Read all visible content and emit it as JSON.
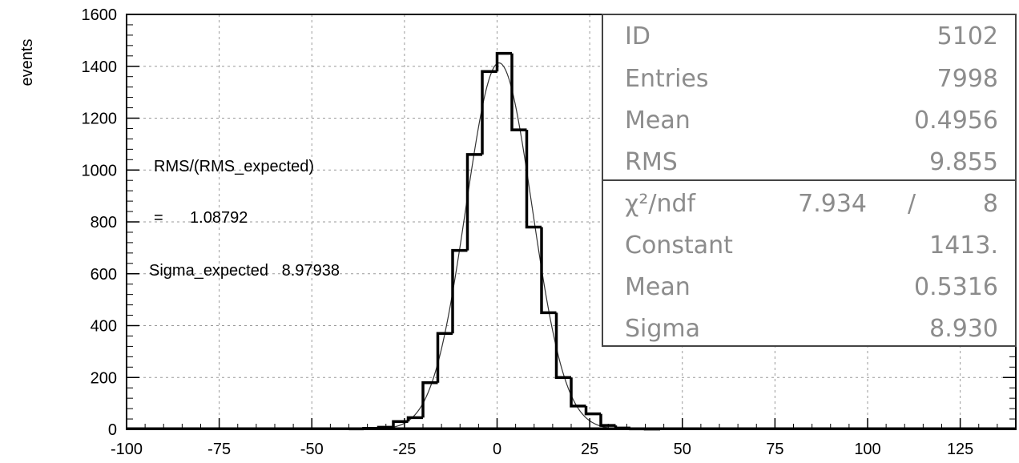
{
  "chart_data": {
    "type": "bar",
    "title": "",
    "xlabel": "",
    "ylabel": "events",
    "xlim": [
      -100,
      140
    ],
    "ylim": [
      0,
      1600
    ],
    "grid": true,
    "xticks": [
      -100,
      -75,
      -50,
      -25,
      0,
      25,
      50,
      75,
      100,
      125
    ],
    "yticks": [
      0,
      200,
      400,
      600,
      800,
      1000,
      1200,
      1400,
      1600
    ],
    "bin_edges": [
      -40,
      -36,
      -32,
      -28,
      -24,
      -20,
      -16,
      -12,
      -8,
      -4,
      0,
      4,
      8,
      12,
      16,
      20,
      24,
      28,
      32,
      36,
      40,
      44
    ],
    "values": [
      2,
      4,
      8,
      30,
      45,
      180,
      370,
      690,
      1060,
      1380,
      1450,
      1155,
      780,
      450,
      200,
      90,
      60,
      15,
      5,
      2,
      1
    ],
    "fit": {
      "function": "gaussian",
      "constant": 1413,
      "mean": 0.5316,
      "sigma": 8.93
    },
    "annotations": [
      {
        "text": "RMS/(RMS_expected)"
      },
      {
        "text": "=      1.08792"
      },
      {
        "text": "Sigma_expected   8.97938"
      }
    ],
    "stats_box": {
      "position": "top-right",
      "rows": [
        {
          "label": "ID",
          "value": "5102"
        },
        {
          "label": "Entries",
          "value": "7998"
        },
        {
          "label": "Mean",
          "value": "0.4956"
        },
        {
          "label": "RMS",
          "value": "9.855"
        }
      ],
      "fit_rows": [
        {
          "label": "χ²/ndf",
          "value": "7.934",
          "sep": "/",
          "ndf": "8"
        },
        {
          "label": "Constant",
          "value": "1413."
        },
        {
          "label": "Mean",
          "value": "0.5316"
        },
        {
          "label": "Sigma",
          "value": "8.930"
        }
      ]
    }
  }
}
